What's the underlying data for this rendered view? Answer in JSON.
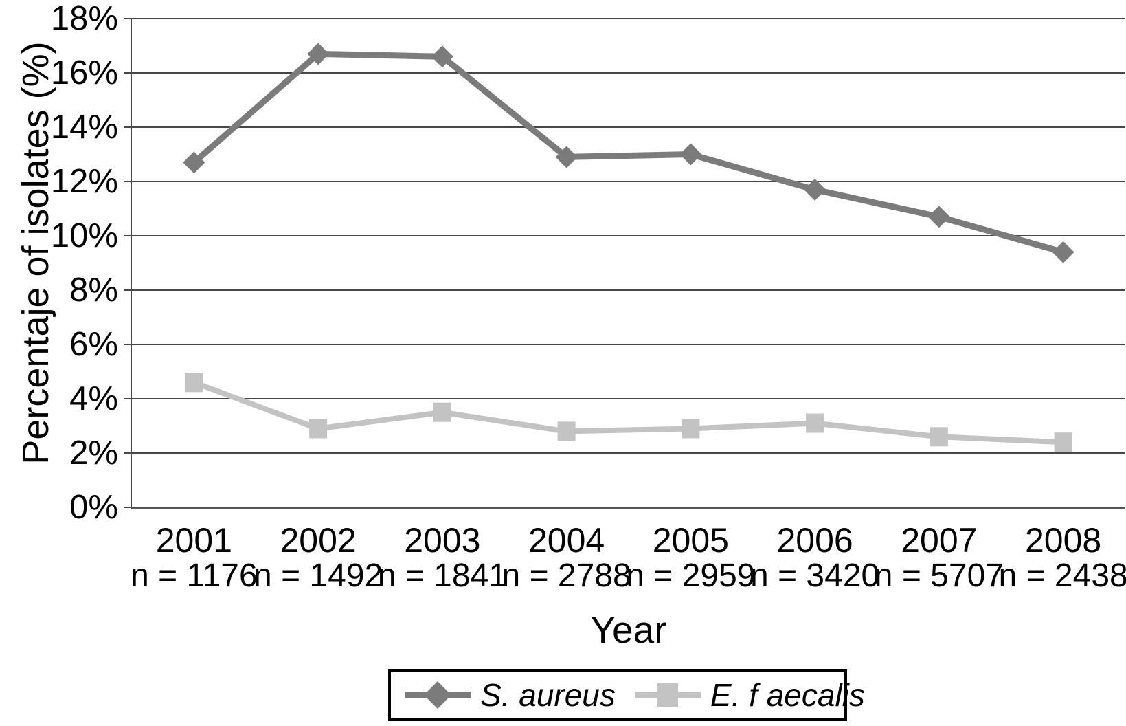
{
  "chart_data": {
    "type": "line",
    "title": "",
    "xlabel": "Year",
    "ylabel": "Percentaje of isolates (%)",
    "ylim": [
      0,
      18
    ],
    "ytick_step": 2,
    "ytick_labels": [
      "18%",
      "16%",
      "14%",
      "12%",
      "10%",
      "8%",
      "6%",
      "4%",
      "2%",
      "0%"
    ],
    "grid": "horizontal-only",
    "legend_position": "bottom-center-boxed",
    "categories": [
      "2001",
      "2002",
      "2003",
      "2004",
      "2005",
      "2006",
      "2007",
      "2008"
    ],
    "n_labels": [
      "n = 1176",
      "n = 1492",
      "n = 1841",
      "n = 2788",
      "n = 2959",
      "n = 3420",
      "n = 5707",
      "n = 2438"
    ],
    "series": [
      {
        "name": "S. aureus",
        "marker": "diamond",
        "color": "#7b7b7b",
        "values": [
          12.7,
          16.7,
          16.6,
          12.9,
          13.0,
          11.7,
          10.7,
          9.4
        ]
      },
      {
        "name": "E. f aecalis",
        "marker": "square",
        "color": "#c3c3c3",
        "values": [
          4.6,
          2.9,
          3.5,
          2.8,
          2.9,
          3.1,
          2.6,
          2.4
        ]
      }
    ]
  },
  "colors": {
    "background": "#ffffff",
    "gridline": "#474747",
    "axis": "#4a4a4a",
    "text": "#000000",
    "legend_border": "#000000"
  }
}
